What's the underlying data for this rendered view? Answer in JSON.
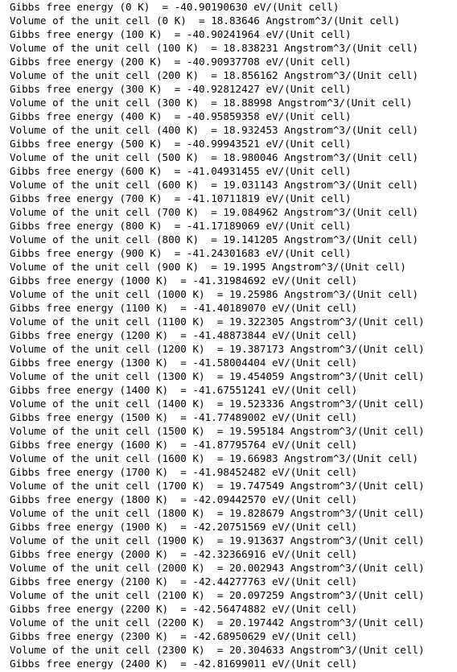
{
  "lines": [
    "Gibbs free energy (0 K)  = -40.90190630 eV/(Unit cell)",
    "Volume of the unit cell (0 K)  = 18.83646 Angstrom^3/(Unit cell)",
    "Gibbs free energy (100 K)  = -40.90241964 eV/(Unit cell)",
    "Volume of the unit cell (100 K)  = 18.838231 Angstrom^3/(Unit cell)",
    "Gibbs free energy (200 K)  = -40.90937708 eV/(Unit cell)",
    "Volume of the unit cell (200 K)  = 18.856162 Angstrom^3/(Unit cell)",
    "Gibbs free energy (300 K)  = -40.92812427 eV/(Unit cell)",
    "Volume of the unit cell (300 K)  = 18.88998 Angstrom^3/(Unit cell)",
    "Gibbs free energy (400 K)  = -40.95859358 eV/(Unit cell)",
    "Volume of the unit cell (400 K)  = 18.932453 Angstrom^3/(Unit cell)",
    "Gibbs free energy (500 K)  = -40.99943521 eV/(Unit cell)",
    "Volume of the unit cell (500 K)  = 18.980046 Angstrom^3/(Unit cell)",
    "Gibbs free energy (600 K)  = -41.04931455 eV/(Unit cell)",
    "Volume of the unit cell (600 K)  = 19.031143 Angstrom^3/(Unit cell)",
    "Gibbs free energy (700 K)  = -41.10711819 eV/(Unit cell)",
    "Volume of the unit cell (700 K)  = 19.084962 Angstrom^3/(Unit cell)",
    "Gibbs free energy (800 K)  = -41.17189069 eV/(Unit cell)",
    "Volume of the unit cell (800 K)  = 19.141205 Angstrom^3/(Unit cell)",
    "Gibbs free energy (900 K)  = -41.24301683 eV/(Unit cell)",
    "Volume of the unit cell (900 K)  = 19.1995 Angstrom^3/(Unit cell)",
    "Gibbs free energy (1000 K)  = -41.31984692 eV/(Unit cell)",
    "Volume of the unit cell (1000 K)  = 19.25986 Angstrom^3/(Unit cell)",
    "Gibbs free energy (1100 K)  = -41.40189070 eV/(Unit cell)",
    "Volume of the unit cell (1100 K)  = 19.322305 Angstrom^3/(Unit cell)",
    "Gibbs free energy (1200 K)  = -41.48873844 eV/(Unit cell)",
    "Volume of the unit cell (1200 K)  = 19.387173 Angstrom^3/(Unit cell)",
    "Gibbs free energy (1300 K)  = -41.58004404 eV/(Unit cell)",
    "Volume of the unit cell (1300 K)  = 19.454059 Angstrom^3/(Unit cell)",
    "Gibbs free energy (1400 K)  = -41.67551241 eV/(Unit cell)",
    "Volume of the unit cell (1400 K)  = 19.523336 Angstrom^3/(Unit cell)",
    "Gibbs free energy (1500 K)  = -41.77489002 eV/(Unit cell)",
    "Volume of the unit cell (1500 K)  = 19.595184 Angstrom^3/(Unit cell)",
    "Gibbs free energy (1600 K)  = -41.87795764 eV/(Unit cell)",
    "Volume of the unit cell (1600 K)  = 19.66983 Angstrom^3/(Unit cell)",
    "Gibbs free energy (1700 K)  = -41.98452482 eV/(Unit cell)",
    "Volume of the unit cell (1700 K)  = 19.747549 Angstrom^3/(Unit cell)",
    "Gibbs free energy (1800 K)  = -42.09442570 eV/(Unit cell)",
    "Volume of the unit cell (1800 K)  = 19.828679 Angstrom^3/(Unit cell)",
    "Gibbs free energy (1900 K)  = -42.20751569 eV/(Unit cell)",
    "Volume of the unit cell (1900 K)  = 19.913637 Angstrom^3/(Unit cell)",
    "Gibbs free energy (2000 K)  = -42.32366916 eV/(Unit cell)",
    "Volume of the unit cell (2000 K)  = 20.002943 Angstrom^3/(Unit cell)",
    "Gibbs free energy (2100 K)  = -42.44277763 eV/(Unit cell)",
    "Volume of the unit cell (2100 K)  = 20.097259 Angstrom^3/(Unit cell)",
    "Gibbs free energy (2200 K)  = -42.56474882 eV/(Unit cell)",
    "Volume of the unit cell (2200 K)  = 20.197442 Angstrom^3/(Unit cell)",
    "Gibbs free energy (2300 K)  = -42.68950629 eV/(Unit cell)",
    "Volume of the unit cell (2300 K)  = 20.304633 Angstrom^3/(Unit cell)",
    "Gibbs free energy (2400 K)  = -42.81699011 eV/(Unit cell)"
  ]
}
